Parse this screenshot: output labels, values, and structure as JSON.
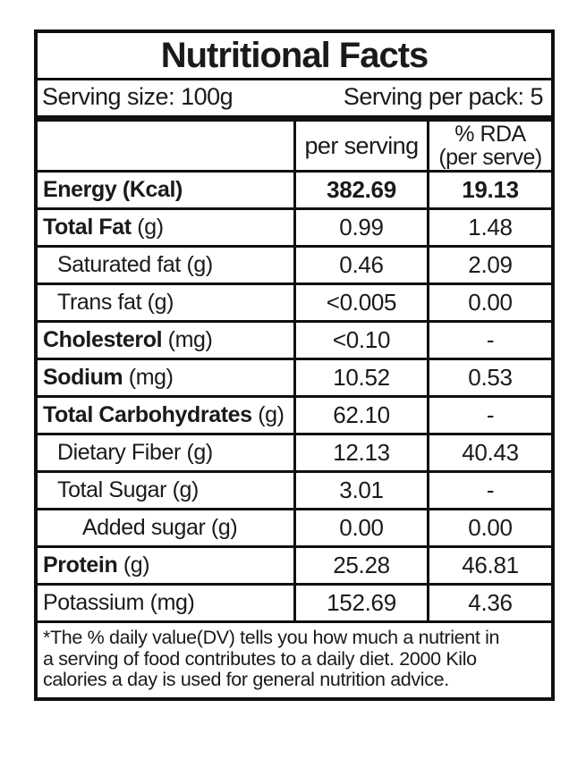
{
  "title": "Nutritional Facts",
  "serving": {
    "size_label": "Serving size: 100g",
    "per_pack_label": "Serving per pack: 5"
  },
  "columns": {
    "per_serving": "per serving",
    "rda_line1": "% RDA",
    "rda_line2": "(per serve)"
  },
  "table": {
    "rows": [
      {
        "label": "Energy",
        "unit": "(Kcal)",
        "indent": 0,
        "bold_label": true,
        "bold_unit": true,
        "bold_values": true,
        "per_serving": "382.69",
        "rda": "19.13"
      },
      {
        "label": "Total Fat",
        "unit": "(g)",
        "indent": 0,
        "bold_label": true,
        "bold_unit": false,
        "bold_values": false,
        "per_serving": "0.99",
        "rda": "1.48"
      },
      {
        "label": "Saturated fat",
        "unit": "(g)",
        "indent": 1,
        "bold_label": false,
        "bold_unit": false,
        "bold_values": false,
        "per_serving": "0.46",
        "rda": "2.09"
      },
      {
        "label": "Trans fat",
        "unit": "(g)",
        "indent": 1,
        "bold_label": false,
        "bold_unit": false,
        "bold_values": false,
        "per_serving": "<0.005",
        "rda": "0.00"
      },
      {
        "label": "Cholesterol",
        "unit": "(mg)",
        "indent": 0,
        "bold_label": true,
        "bold_unit": false,
        "bold_values": false,
        "per_serving": "<0.10",
        "rda": "-"
      },
      {
        "label": "Sodium",
        "unit": "(mg)",
        "indent": 0,
        "bold_label": true,
        "bold_unit": false,
        "bold_values": false,
        "per_serving": "10.52",
        "rda": "0.53"
      },
      {
        "label": "Total Carbohydrates",
        "unit": "(g)",
        "indent": 0,
        "bold_label": true,
        "bold_unit": false,
        "bold_values": false,
        "per_serving": "62.10",
        "rda": "-"
      },
      {
        "label": "Dietary Fiber",
        "unit": "(g)",
        "indent": 1,
        "bold_label": false,
        "bold_unit": false,
        "bold_values": false,
        "per_serving": "12.13",
        "rda": "40.43"
      },
      {
        "label": "Total Sugar",
        "unit": "(g)",
        "indent": 1,
        "bold_label": false,
        "bold_unit": false,
        "bold_values": false,
        "per_serving": "3.01",
        "rda": "-"
      },
      {
        "label": "Added sugar",
        "unit": "(g)",
        "indent": 2,
        "bold_label": false,
        "bold_unit": false,
        "bold_values": false,
        "per_serving": "0.00",
        "rda": "0.00"
      },
      {
        "label": "Protein",
        "unit": "(g)",
        "indent": 0,
        "bold_label": true,
        "bold_unit": false,
        "bold_values": false,
        "per_serving": "25.28",
        "rda": "46.81"
      },
      {
        "label": "Potassium",
        "unit": "(mg)",
        "indent": 0,
        "bold_label": false,
        "bold_unit": false,
        "bold_values": false,
        "per_serving": "152.69",
        "rda": "4.36"
      }
    ]
  },
  "footnote": {
    "line1": "*The % daily value(DV) tells you how much a nutrient in",
    "line2": "a serving of food contributes to a daily diet. 2000 Kilo",
    "line3": "calories a day is used for general nutrition advice."
  },
  "colors": {
    "border": "#101010",
    "text": "#1a1a1a",
    "background": "#ffffff"
  }
}
